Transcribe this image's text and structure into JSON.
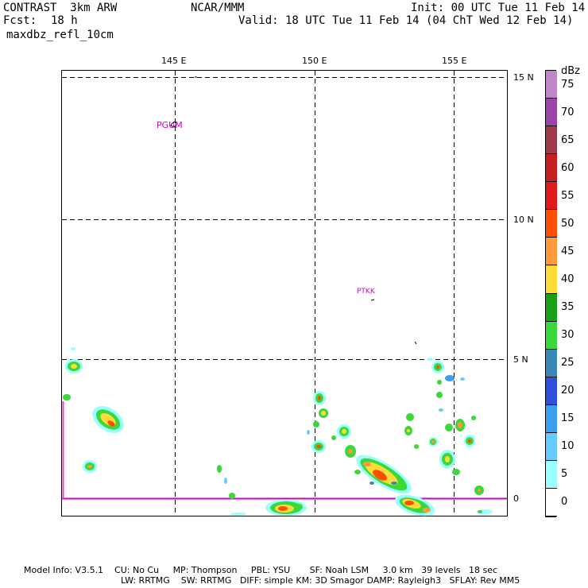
{
  "header": {
    "model": "CONTRAST  3km ARW",
    "org": "NCAR/MMM",
    "init": "Init: 00 UTC Tue 11 Feb 14",
    "fcst_label": "Fcst:",
    "fcst_value": "18 h",
    "valid": "Valid: 18 UTC Tue 11 Feb 14 (04 ChT Wed 12 Feb 14)",
    "field": "maxdbz_refl_10cm"
  },
  "map": {
    "lon_labels": [
      "145 E",
      "150 E",
      "155 E"
    ],
    "lat_labels": [
      "15 N",
      "10 N",
      "5 N",
      "0"
    ],
    "stations": [
      "PGUM",
      "PTKK"
    ],
    "grid_style": "dashed",
    "equator_color": "#cc00cc"
  },
  "colorbar": {
    "unit": "dBz",
    "levels": [
      "75",
      "70",
      "65",
      "60",
      "55",
      "50",
      "45",
      "40",
      "35",
      "30",
      "25",
      "20",
      "15",
      "10",
      "5",
      "0"
    ],
    "colors": [
      "#c087c8",
      "#9b45a8",
      "#a1394d",
      "#c81e1e",
      "#e01a1a",
      "#ff4e00",
      "#ff9a3a",
      "#ffdb3a",
      "#18a018",
      "#3ad83a",
      "#3a88b8",
      "#2e4edc",
      "#3aa0ee",
      "#66ccff",
      "#99ffff",
      "#ffffff"
    ]
  },
  "footer": {
    "line1": "Model Info: V3.5.1    CU: No Cu     MP: Thompson     PBL: YSU       SF: Noah LSM     3.0 km   39 levels   18 sec",
    "line2": "LW: RRTMG    SW: RRTMG   DIFF: simple KM: 3D Smagor DAMP: Rayleigh3   SFLAY: Rev MM5"
  }
}
